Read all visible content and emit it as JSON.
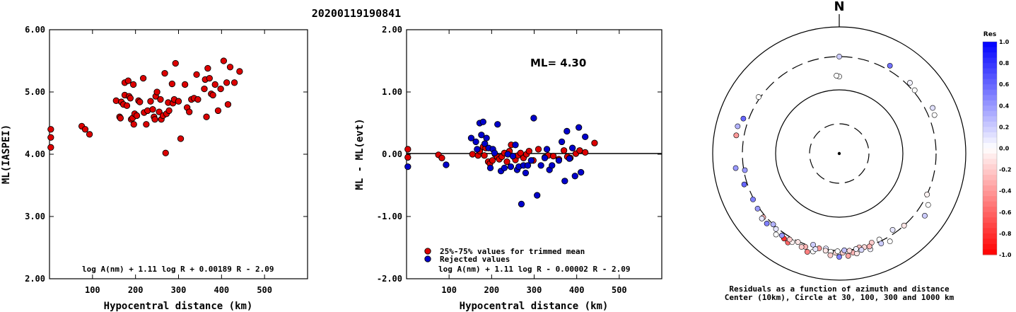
{
  "title": "20200119190841",
  "chart_data": [
    {
      "type": "scatter",
      "name": "ml-vs-distance",
      "ylabel": "ML(IASPEI)",
      "xlabel": "Hypocentral distance (km)",
      "xlim": [
        0,
        600
      ],
      "ylim": [
        2.0,
        6.0
      ],
      "xticks": [
        100,
        200,
        300,
        400,
        500
      ],
      "yticks": [
        2.0,
        3.0,
        4.0,
        5.0,
        6.0
      ],
      "ytick_labels": [
        "2.00",
        "3.00",
        "4.00",
        "5.00",
        "6.00"
      ],
      "formula": "log A(nm) + 1.11 log R + 0.00189 R - 2.09",
      "color": "#dd0000",
      "points": [
        [
          3,
          4.4
        ],
        [
          3,
          4.27
        ],
        [
          3,
          4.11
        ],
        [
          75,
          4.45
        ],
        [
          83,
          4.4
        ],
        [
          93,
          4.32
        ],
        [
          155,
          4.86
        ],
        [
          163,
          4.6
        ],
        [
          165,
          4.58
        ],
        [
          167,
          4.84
        ],
        [
          172,
          4.8
        ],
        [
          175,
          4.95
        ],
        [
          175,
          5.15
        ],
        [
          180,
          4.78
        ],
        [
          183,
          5.18
        ],
        [
          185,
          4.93
        ],
        [
          188,
          4.9
        ],
        [
          190,
          4.56
        ],
        [
          193,
          4.58
        ],
        [
          195,
          5.12
        ],
        [
          196,
          4.48
        ],
        [
          198,
          4.65
        ],
        [
          203,
          4.62
        ],
        [
          207,
          4.86
        ],
        [
          210,
          4.84
        ],
        [
          218,
          5.22
        ],
        [
          220,
          4.67
        ],
        [
          225,
          4.48
        ],
        [
          228,
          4.7
        ],
        [
          235,
          4.85
        ],
        [
          240,
          4.72
        ],
        [
          243,
          4.6
        ],
        [
          245,
          4.56
        ],
        [
          247,
          4.93
        ],
        [
          250,
          5.0
        ],
        [
          255,
          4.68
        ],
        [
          258,
          4.88
        ],
        [
          260,
          4.56
        ],
        [
          264,
          4.62
        ],
        [
          268,
          5.3
        ],
        [
          270,
          4.02
        ],
        [
          272,
          4.65
        ],
        [
          276,
          4.83
        ],
        [
          278,
          4.7
        ],
        [
          285,
          5.13
        ],
        [
          287,
          4.82
        ],
        [
          290,
          4.88
        ],
        [
          293,
          5.46
        ],
        [
          300,
          4.85
        ],
        [
          305,
          4.25
        ],
        [
          315,
          5.12
        ],
        [
          320,
          4.75
        ],
        [
          325,
          4.68
        ],
        [
          330,
          4.88
        ],
        [
          336,
          4.9
        ],
        [
          342,
          5.28
        ],
        [
          345,
          4.88
        ],
        [
          360,
          5.05
        ],
        [
          362,
          5.2
        ],
        [
          365,
          4.6
        ],
        [
          368,
          5.38
        ],
        [
          372,
          5.22
        ],
        [
          376,
          4.97
        ],
        [
          380,
          4.95
        ],
        [
          385,
          5.12
        ],
        [
          392,
          4.7
        ],
        [
          398,
          5.05
        ],
        [
          405,
          5.5
        ],
        [
          412,
          5.15
        ],
        [
          415,
          4.8
        ],
        [
          420,
          5.4
        ],
        [
          430,
          5.15
        ],
        [
          442,
          5.33
        ]
      ]
    },
    {
      "type": "scatter",
      "name": "residuals-vs-distance",
      "ylabel": "ML - ML(evt)",
      "xlabel": "Hypocentral distance (km)",
      "xlim": [
        0,
        600
      ],
      "ylim": [
        -2.0,
        2.0
      ],
      "xticks": [
        100,
        200,
        300,
        400,
        500
      ],
      "yticks": [
        -2.0,
        -1.0,
        0.0,
        1.0,
        2.0
      ],
      "ytick_labels": [
        "-2.00",
        "-1.00",
        "0.00",
        "1.00",
        "2.00"
      ],
      "ml_label": "ML= 4.30",
      "formula": "log A(nm) + 1.11 log R - 0.00002 R - 2.09",
      "legend": [
        "25%-75% values for trimmed mean",
        "Rejected values"
      ],
      "series": [
        {
          "name": "25%-75% values for trimmed mean",
          "color": "#dd0000",
          "points": [
            [
              3,
              0.08
            ],
            [
              3,
              -0.05
            ],
            [
              75,
              -0.01
            ],
            [
              83,
              -0.06
            ],
            [
              155,
              0.0
            ],
            [
              168,
              -0.02
            ],
            [
              172,
              0.05
            ],
            [
              180,
              0.12
            ],
            [
              183,
              -0.02
            ],
            [
              186,
              0.1
            ],
            [
              192,
              -0.12
            ],
            [
              196,
              -0.15
            ],
            [
              202,
              -0.1
            ],
            [
              208,
              0.0
            ],
            [
              213,
              -0.04
            ],
            [
              218,
              -0.08
            ],
            [
              224,
              -0.04
            ],
            [
              230,
              0.02
            ],
            [
              236,
              -0.12
            ],
            [
              242,
              0.05
            ],
            [
              246,
              0.15
            ],
            [
              252,
              -0.04
            ],
            [
              256,
              -0.09
            ],
            [
              262,
              -0.02
            ],
            [
              268,
              0.02
            ],
            [
              275,
              -0.06
            ],
            [
              282,
              0.0
            ],
            [
              288,
              0.05
            ],
            [
              298,
              -0.1
            ],
            [
              310,
              0.08
            ],
            [
              325,
              -0.05
            ],
            [
              333,
              -0.02
            ],
            [
              345,
              -0.03
            ],
            [
              358,
              -0.08
            ],
            [
              370,
              0.06
            ],
            [
              378,
              -0.04
            ],
            [
              385,
              -0.06
            ],
            [
              398,
              0.01
            ],
            [
              407,
              0.06
            ],
            [
              420,
              0.03
            ],
            [
              442,
              0.18
            ]
          ]
        },
        {
          "name": "Rejected values",
          "color": "#0000cc",
          "points": [
            [
              3,
              -0.2
            ],
            [
              93,
              -0.17
            ],
            [
              152,
              0.26
            ],
            [
              163,
              0.2
            ],
            [
              166,
              0.08
            ],
            [
              172,
              0.5
            ],
            [
              176,
              0.31
            ],
            [
              180,
              0.52
            ],
            [
              184,
              0.17
            ],
            [
              188,
              0.26
            ],
            [
              193,
              0.1
            ],
            [
              197,
              -0.22
            ],
            [
              203,
              0.08
            ],
            [
              207,
              0.02
            ],
            [
              214,
              0.48
            ],
            [
              222,
              -0.27
            ],
            [
              230,
              -0.22
            ],
            [
              238,
              0.0
            ],
            [
              245,
              -0.2
            ],
            [
              250,
              -0.03
            ],
            [
              256,
              0.15
            ],
            [
              260,
              -0.25
            ],
            [
              264,
              -0.2
            ],
            [
              270,
              -0.8
            ],
            [
              275,
              -0.18
            ],
            [
              280,
              -0.3
            ],
            [
              285,
              -0.18
            ],
            [
              293,
              -0.1
            ],
            [
              299,
              0.58
            ],
            [
              307,
              -0.66
            ],
            [
              316,
              -0.18
            ],
            [
              325,
              -0.06
            ],
            [
              330,
              0.08
            ],
            [
              336,
              -0.25
            ],
            [
              342,
              -0.18
            ],
            [
              358,
              -0.1
            ],
            [
              365,
              0.2
            ],
            [
              372,
              -0.43
            ],
            [
              377,
              0.37
            ],
            [
              383,
              -0.07
            ],
            [
              390,
              0.1
            ],
            [
              396,
              -0.35
            ],
            [
              405,
              0.43
            ],
            [
              410,
              -0.29
            ],
            [
              420,
              0.28
            ]
          ]
        }
      ]
    },
    {
      "type": "polar-scatter",
      "name": "residual-azimuth-map",
      "north_label": "N",
      "caption_line1": "Residuals as a function of azimuth and distance",
      "caption_line2": "Center (10km), Circle at 30, 100, 300 and 1000 km",
      "circles_km": [
        30,
        100,
        300,
        1000
      ],
      "colorbar": {
        "title": "Res",
        "range": [
          -1.0,
          1.0
        ],
        "tick_labels": [
          "1.0",
          "0.8",
          "0.6",
          "0.4",
          "0.2",
          "0.0",
          "-0.2",
          "-0.4",
          "-0.6",
          "-0.8",
          "-1.0"
        ],
        "max_color": "#0000ff",
        "zero_color": "#ffffff",
        "min_color": "#ff0000"
      },
      "points": [
        [
          0,
          300,
          0.2
        ],
        [
          30,
          360,
          0.55
        ],
        [
          45,
          340,
          0.05
        ],
        [
          50,
          320,
          0.0
        ],
        [
          64,
          400,
          0.12
        ],
        [
          68,
          380,
          0.0
        ],
        [
          115,
          300,
          -0.05
        ],
        [
          120,
          380,
          0.0
        ],
        [
          126,
          430,
          0.2
        ],
        [
          138,
          300,
          -0.1
        ],
        [
          145,
          265,
          0.1
        ],
        [
          155,
          280,
          0.0
        ],
        [
          160,
          280,
          -0.2
        ],
        [
          165,
          300,
          -0.15
        ],
        [
          168,
          290,
          -0.25
        ],
        [
          172,
          340,
          -0.3
        ],
        [
          175,
          320,
          0.0
        ],
        [
          178,
          330,
          -0.2
        ],
        [
          182,
          330,
          -0.15
        ],
        [
          185,
          320,
          0.0
        ],
        [
          188,
          290,
          0.1
        ],
        [
          192,
          300,
          -0.4
        ],
        [
          196,
          280,
          0.2
        ],
        [
          200,
          330,
          -0.3
        ],
        [
          205,
          310,
          -0.1
        ],
        [
          210,
          380,
          -0.6
        ],
        [
          213,
          360,
          -0.8
        ],
        [
          215,
          340,
          0.4
        ],
        [
          220,
          320,
          0.1
        ],
        [
          223,
          300,
          0.3
        ],
        [
          226,
          350,
          0.5
        ],
        [
          230,
          330,
          -0.3
        ],
        [
          236,
          320,
          0.4
        ],
        [
          242,
          310,
          0.5
        ],
        [
          252,
          340,
          0.6
        ],
        [
          260,
          290,
          0.4
        ],
        [
          262,
          410,
          0.4
        ],
        [
          280,
          410,
          -0.4
        ],
        [
          285,
          420,
          0.3
        ],
        [
          290,
          370,
          0.6
        ],
        [
          305,
          320,
          0.0
        ],
        [
          150,
          360,
          0.0
        ],
        [
          170,
          360,
          -0.1
        ],
        [
          185,
          370,
          -0.2
        ],
        [
          195,
          360,
          0.0
        ],
        [
          202,
          350,
          -0.2
        ],
        [
          218,
          380,
          0.0
        ],
        [
          162,
          350,
          0.05
        ],
        [
          208,
          345,
          -0.05
        ],
        [
          175,
          380,
          -0.35
        ],
        [
          230,
          355,
          0.1
        ],
        [
          180,
          390,
          0.5
        ],
        [
          198,
          390,
          -0.5
        ],
        [
          155,
          330,
          0.2
        ],
        [
          162,
          310,
          -0.3
        ],
        [
          167,
          325,
          0.15
        ],
        [
          170,
          300,
          0.05
        ],
        [
          174,
          310,
          -0.15
        ],
        [
          177,
          300,
          0.25
        ],
        [
          181,
          310,
          0.0
        ],
        [
          188,
          315,
          -0.1
        ],
        [
          194,
          320,
          0.1
        ],
        [
          210,
          330,
          -0.2
        ],
        [
          0,
          155,
          0.0
        ],
        [
          358,
          160,
          0.0
        ]
      ]
    }
  ]
}
